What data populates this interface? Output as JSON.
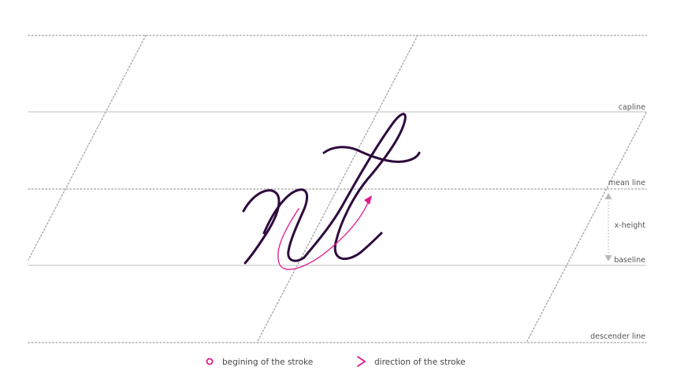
{
  "guides": {
    "capline": "capline",
    "mean_line": "mean line",
    "x_height": "x-height",
    "baseline": "baseline",
    "descender_line": "descender line"
  },
  "legend": {
    "start_label": "begining of the stroke",
    "direction_label": "direction of the stroke"
  },
  "colors": {
    "guide_line": "#b3b3b3",
    "ink": "#2e0a3d",
    "accent": "#e0198a",
    "x_height_marker": "#b8b8b8"
  }
}
